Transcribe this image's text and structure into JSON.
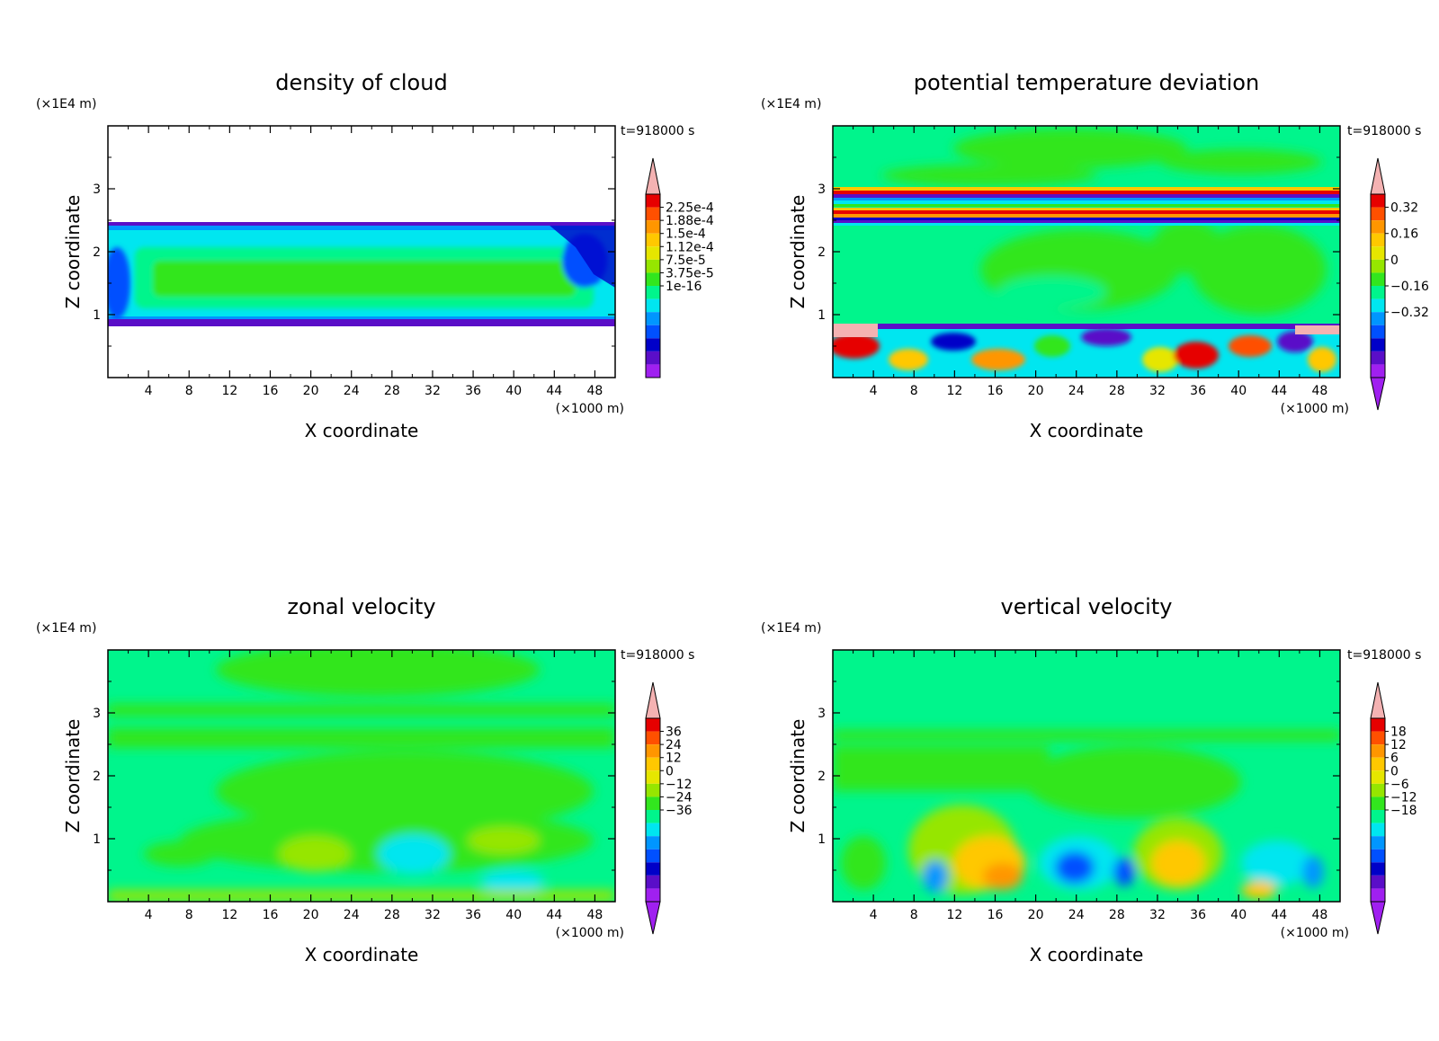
{
  "chart_data": [
    {
      "type": "heatmap",
      "title": "density of cloud",
      "xlabel": "X coordinate",
      "ylabel": "Z coordinate",
      "x_unit": "(×1000 m)",
      "y_unit": "(×1E4 m)",
      "time_label": "t=918000 s",
      "xlim": [
        0,
        50
      ],
      "ylim": [
        0,
        4
      ],
      "x_ticks": [
        "4",
        "8",
        "12",
        "16",
        "20",
        "24",
        "28",
        "32",
        "36",
        "40",
        "44",
        "48"
      ],
      "y_ticks": [
        "1",
        "2",
        "3"
      ],
      "colorbar_labels": [
        "2.25e-4",
        "1.88e-4",
        "1.5e-4",
        "1.12e-4",
        "7.5e-5",
        "3.75e-5",
        "1e-16"
      ],
      "field": "cloud"
    },
    {
      "type": "heatmap",
      "title": "potential temperature deviation",
      "xlabel": "X coordinate",
      "ylabel": "Z coordinate",
      "x_unit": "(×1000 m)",
      "y_unit": "(×1E4 m)",
      "time_label": "t=918000 s",
      "xlim": [
        0,
        50
      ],
      "ylim": [
        0,
        4
      ],
      "x_ticks": [
        "4",
        "8",
        "12",
        "16",
        "20",
        "24",
        "28",
        "32",
        "36",
        "40",
        "44",
        "48"
      ],
      "y_ticks": [
        "1",
        "2",
        "3"
      ],
      "colorbar_labels": [
        "0.32",
        "0.16",
        "0",
        "−0.16",
        "−0.32"
      ],
      "field": "theta"
    },
    {
      "type": "heatmap",
      "title": "zonal velocity",
      "xlabel": "X coordinate",
      "ylabel": "Z coordinate",
      "x_unit": "(×1000 m)",
      "y_unit": "(×1E4 m)",
      "time_label": "t=918000 s",
      "xlim": [
        0,
        50
      ],
      "ylim": [
        0,
        4
      ],
      "x_ticks": [
        "4",
        "8",
        "12",
        "16",
        "20",
        "24",
        "28",
        "32",
        "36",
        "40",
        "44",
        "48"
      ],
      "y_ticks": [
        "1",
        "2",
        "3"
      ],
      "colorbar_labels": [
        "36",
        "24",
        "12",
        "0",
        "−12",
        "−24",
        "−36"
      ],
      "field": "u"
    },
    {
      "type": "heatmap",
      "title": "vertical velocity",
      "xlabel": "X coordinate",
      "ylabel": "Z coordinate",
      "x_unit": "(×1000 m)",
      "y_unit": "(×1E4 m)",
      "time_label": "t=918000 s",
      "xlim": [
        0,
        50
      ],
      "ylim": [
        0,
        4
      ],
      "x_ticks": [
        "4",
        "8",
        "12",
        "16",
        "20",
        "24",
        "28",
        "32",
        "36",
        "40",
        "44",
        "48"
      ],
      "y_ticks": [
        "1",
        "2",
        "3"
      ],
      "colorbar_labels": [
        "18",
        "12",
        "6",
        "0",
        "−6",
        "−12",
        "−18"
      ],
      "field": "w"
    }
  ],
  "colors": {
    "background_field": "#00f58c",
    "tip_top": "#f4b2b2",
    "tip_bottom": "#a020f0",
    "scale": [
      "#a020f0",
      "#5a0ec8",
      "#0000c8",
      "#0050ff",
      "#0096ff",
      "#00e6f0",
      "#00f58c",
      "#32e61e",
      "#96e600",
      "#e6e600",
      "#ffc800",
      "#ff9600",
      "#ff5000",
      "#e60000"
    ]
  }
}
